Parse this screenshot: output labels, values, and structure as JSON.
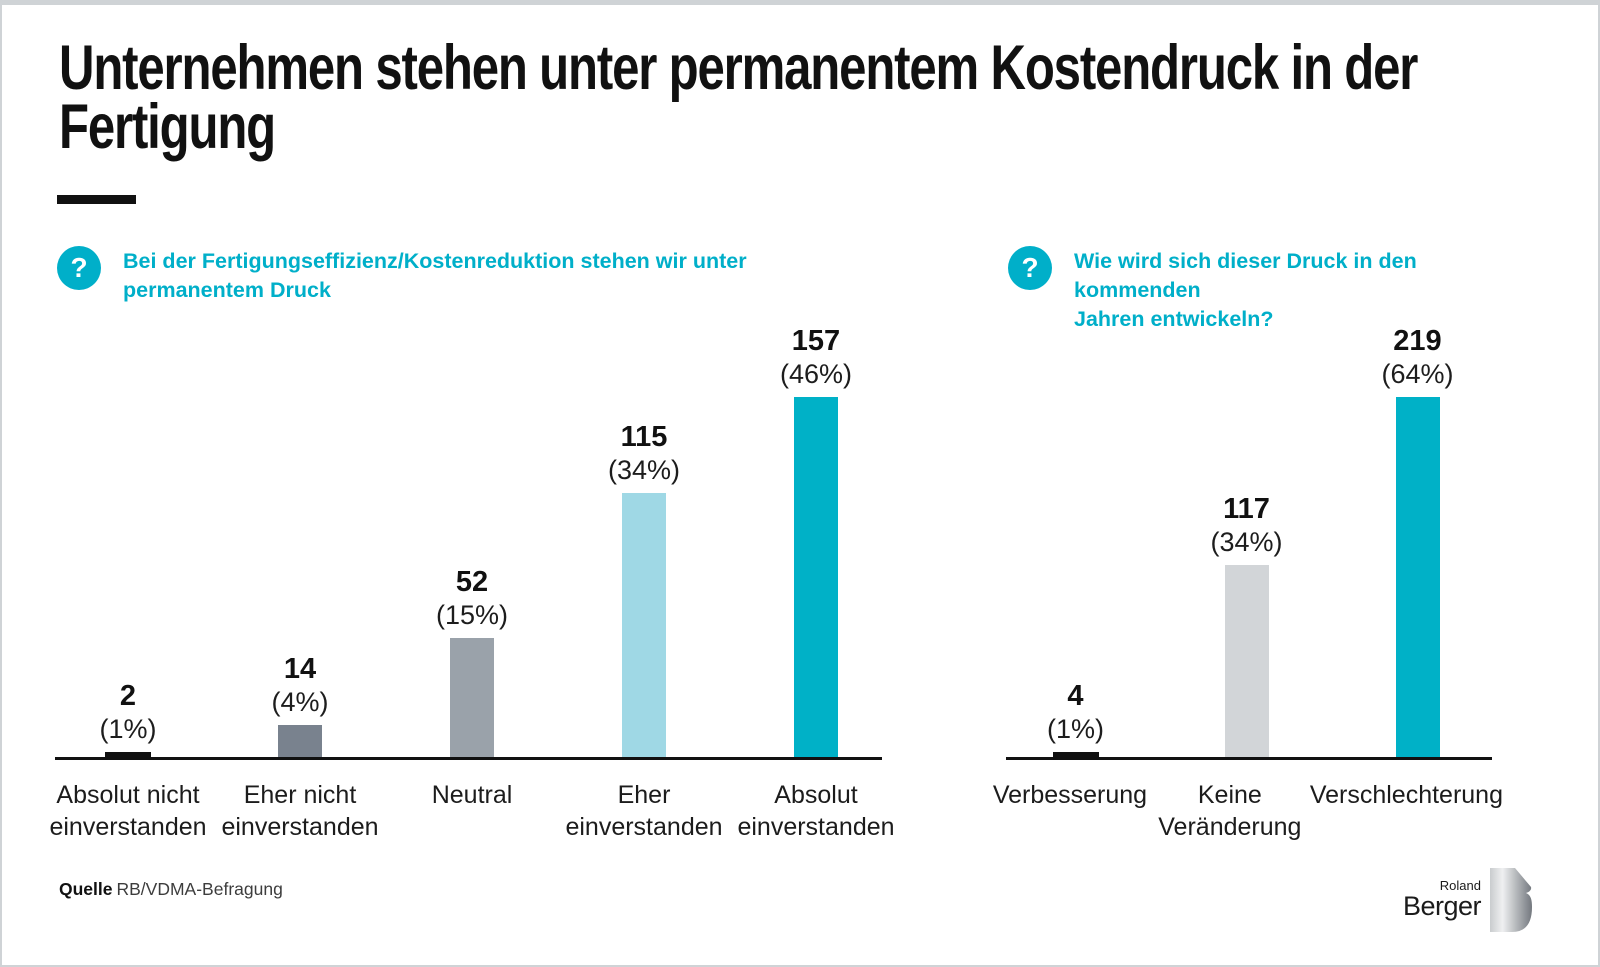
{
  "header": {
    "title": "Unternehmen stehen unter permanentem Kostendruck in der\nFertigung"
  },
  "icons": {
    "question": "?"
  },
  "colors": {
    "accent": "#00AFC9",
    "bar_black": "#101010",
    "bar_dark_gray": "#79828E",
    "bar_medium_gray": "#9AA2AA",
    "bar_light_blue": "#9FD8E5",
    "bar_cyan": "#00B1C7",
    "bar_light_gray": "#D2D5D8"
  },
  "questions": [
    {
      "text": "Bei der Fertigungseffizienz/Kostenreduktion stehen wir unter\npermanentem Druck"
    },
    {
      "text": "Wie wird sich dieser Druck in den kommenden\nJahren entwickeln?"
    }
  ],
  "chart_data": [
    {
      "type": "bar",
      "title": "Bei der Fertigungseffizienz/Kostenreduktion stehen wir unter permanentem Druck",
      "categories": [
        "Absolut nicht\neinverstanden",
        "Eher nicht\neinverstanden",
        "Neutral",
        "Eher\neinverstanden",
        "Absolut\neinverstanden"
      ],
      "values": [
        2,
        14,
        52,
        115,
        157
      ],
      "percent_labels": [
        "(1%)",
        "(4%)",
        "(15%)",
        "(34%)",
        "(46%)"
      ],
      "bar_colors": [
        "#101010",
        "#79828E",
        "#9AA2AA",
        "#9FD8E5",
        "#00B1C7"
      ],
      "xlabel": "",
      "ylabel": "",
      "ylim": [
        0,
        157
      ],
      "grid": false,
      "legend": false
    },
    {
      "type": "bar",
      "title": "Wie wird sich dieser Druck in den kommenden Jahren entwickeln?",
      "categories": [
        "Verbesserung",
        "Keine\nVeränderung",
        "Verschlechterung"
      ],
      "values": [
        4,
        117,
        219
      ],
      "percent_labels": [
        "(1%)",
        "(34%)",
        "(64%)"
      ],
      "bar_colors": [
        "#101010",
        "#D2D5D8",
        "#00B1C7"
      ],
      "xlabel": "",
      "ylabel": "",
      "ylim": [
        0,
        219
      ],
      "grid": false,
      "legend": false
    }
  ],
  "source": {
    "label": "Quelle",
    "text": "RB/VDMA-Befragung"
  },
  "logo": {
    "line1": "Roland",
    "line2": "Berger"
  }
}
